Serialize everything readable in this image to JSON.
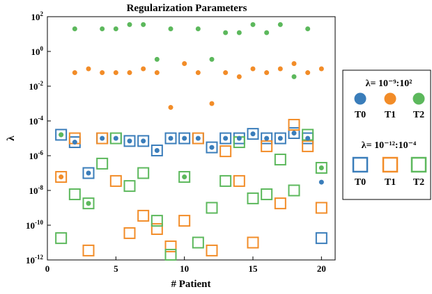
{
  "chart_data": {
    "type": "scatter",
    "title": "Regularization Parameters",
    "xlabel": "# Patient",
    "ylabel": "λ",
    "xlim": [
      0,
      21
    ],
    "ylim": [
      1e-12,
      100
    ],
    "yscale": "log",
    "grid": false,
    "legend_placement": "right",
    "x_ticks": [
      {
        "value": 0,
        "label": "0"
      },
      {
        "value": 5,
        "label": "5"
      },
      {
        "value": 10,
        "label": "10"
      },
      {
        "value": 15,
        "label": "15"
      },
      {
        "value": 20,
        "label": "20"
      }
    ],
    "y_ticks": [
      {
        "value": 1e-12,
        "base": "10",
        "exp": "-12"
      },
      {
        "value": 1e-10,
        "base": "10",
        "exp": "-10"
      },
      {
        "value": 1e-08,
        "base": "10",
        "exp": "-8"
      },
      {
        "value": 1e-06,
        "base": "10",
        "exp": "-6"
      },
      {
        "value": 0.0001,
        "base": "10",
        "exp": "-4"
      },
      {
        "value": 0.01,
        "base": "10",
        "exp": "-2"
      },
      {
        "value": 1,
        "base": "10",
        "exp": "0"
      },
      {
        "value": 100,
        "base": "10",
        "exp": "2"
      }
    ],
    "legend_groups": [
      {
        "title": "λ= 10⁻⁹:10²",
        "marker": "circle"
      },
      {
        "title": "λ= 10⁻¹²:10⁻⁴",
        "marker": "square"
      }
    ],
    "series": [
      {
        "name": "T0",
        "group": 0,
        "marker": "circle",
        "color": "#3a7dba",
        "x": [
          1,
          2,
          3,
          4,
          5,
          6,
          7,
          8,
          9,
          10,
          11,
          12,
          13,
          14,
          15,
          16,
          17,
          18,
          19,
          20
        ],
        "y": [
          1.6e-05,
          6e-06,
          1e-07,
          1e-05,
          1e-05,
          7e-06,
          7e-06,
          2e-06,
          1e-05,
          1e-05,
          1e-05,
          3e-06,
          1e-05,
          1e-05,
          1.8e-05,
          1e-05,
          1e-05,
          2e-05,
          1e-05,
          3e-08
        ]
      },
      {
        "name": "T1",
        "group": 0,
        "marker": "circle",
        "color": "#f28c28",
        "x": [
          1,
          2,
          3,
          4,
          5,
          6,
          7,
          8,
          9,
          10,
          11,
          12,
          13,
          14,
          15,
          16,
          17,
          18,
          19,
          20
        ],
        "y": [
          6e-08,
          0.06,
          0.1,
          0.06,
          0.06,
          0.06,
          0.1,
          0.06,
          0.0006,
          0.2,
          0.06,
          0.001,
          0.06,
          0.035,
          0.1,
          0.06,
          0.1,
          0.2,
          0.06,
          0.1
        ]
      },
      {
        "name": "T2",
        "group": 0,
        "marker": "circle",
        "color": "#5cb85c",
        "x": [
          1,
          2,
          3,
          4,
          5,
          6,
          7,
          8,
          9,
          10,
          11,
          12,
          13,
          14,
          15,
          16,
          17,
          18,
          19,
          20
        ],
        "y": [
          1.6e-05,
          20,
          1.8e-09,
          20,
          20,
          35,
          35,
          0.35,
          20,
          6e-08,
          20,
          0.35,
          12,
          12,
          35,
          12,
          35,
          0.035,
          20,
          2e-07
        ]
      },
      {
        "name": "T0",
        "group": 1,
        "marker": "square",
        "color": "#3a7dba",
        "x": [
          1,
          2,
          3,
          4,
          5,
          6,
          7,
          8,
          9,
          10,
          11,
          12,
          13,
          14,
          15,
          16,
          17,
          18,
          19,
          20
        ],
        "y": [
          1.6e-05,
          6e-06,
          1e-07,
          1e-05,
          1e-05,
          7e-06,
          7e-06,
          2e-06,
          1e-05,
          1e-05,
          1e-05,
          3e-06,
          1e-05,
          1e-05,
          1.8e-05,
          1e-05,
          1e-05,
          2e-05,
          1e-05,
          1.8e-11
        ]
      },
      {
        "name": "T1",
        "group": 1,
        "marker": "square",
        "color": "#f28c28",
        "x": [
          1,
          2,
          3,
          4,
          5,
          6,
          7,
          8,
          9,
          10,
          11,
          12,
          13,
          14,
          15,
          16,
          17,
          18,
          19,
          20
        ],
        "y": [
          6e-08,
          1e-05,
          3.5e-12,
          1e-05,
          3.5e-08,
          3.5e-11,
          3.5e-10,
          6e-11,
          6e-12,
          1.8e-10,
          1e-05,
          3.5e-12,
          1.8e-06,
          3.5e-08,
          1e-11,
          3.5e-06,
          1.8e-09,
          6e-05,
          3.5e-06,
          1e-09
        ]
      },
      {
        "name": "T2",
        "group": 1,
        "marker": "square",
        "color": "#5cb85c",
        "x": [
          1,
          2,
          3,
          4,
          5,
          6,
          7,
          8,
          9,
          10,
          11,
          12,
          13,
          14,
          15,
          16,
          17,
          18,
          19,
          20
        ],
        "y": [
          1.8e-11,
          6e-09,
          1.8e-09,
          3.5e-07,
          1e-05,
          1.8e-08,
          1e-07,
          1.8e-10,
          2e-12,
          6e-08,
          1e-11,
          1e-09,
          3.5e-08,
          6e-06,
          3.5e-09,
          6e-09,
          6e-07,
          1e-08,
          1.6e-05,
          2e-07
        ]
      }
    ]
  }
}
